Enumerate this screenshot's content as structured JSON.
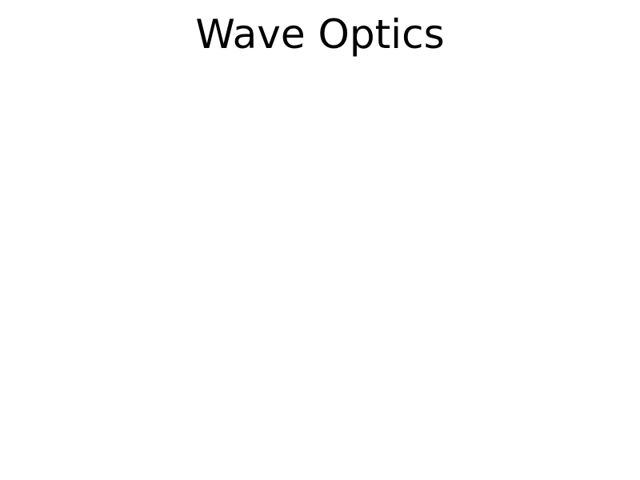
{
  "title": "Wave Optics"
}
